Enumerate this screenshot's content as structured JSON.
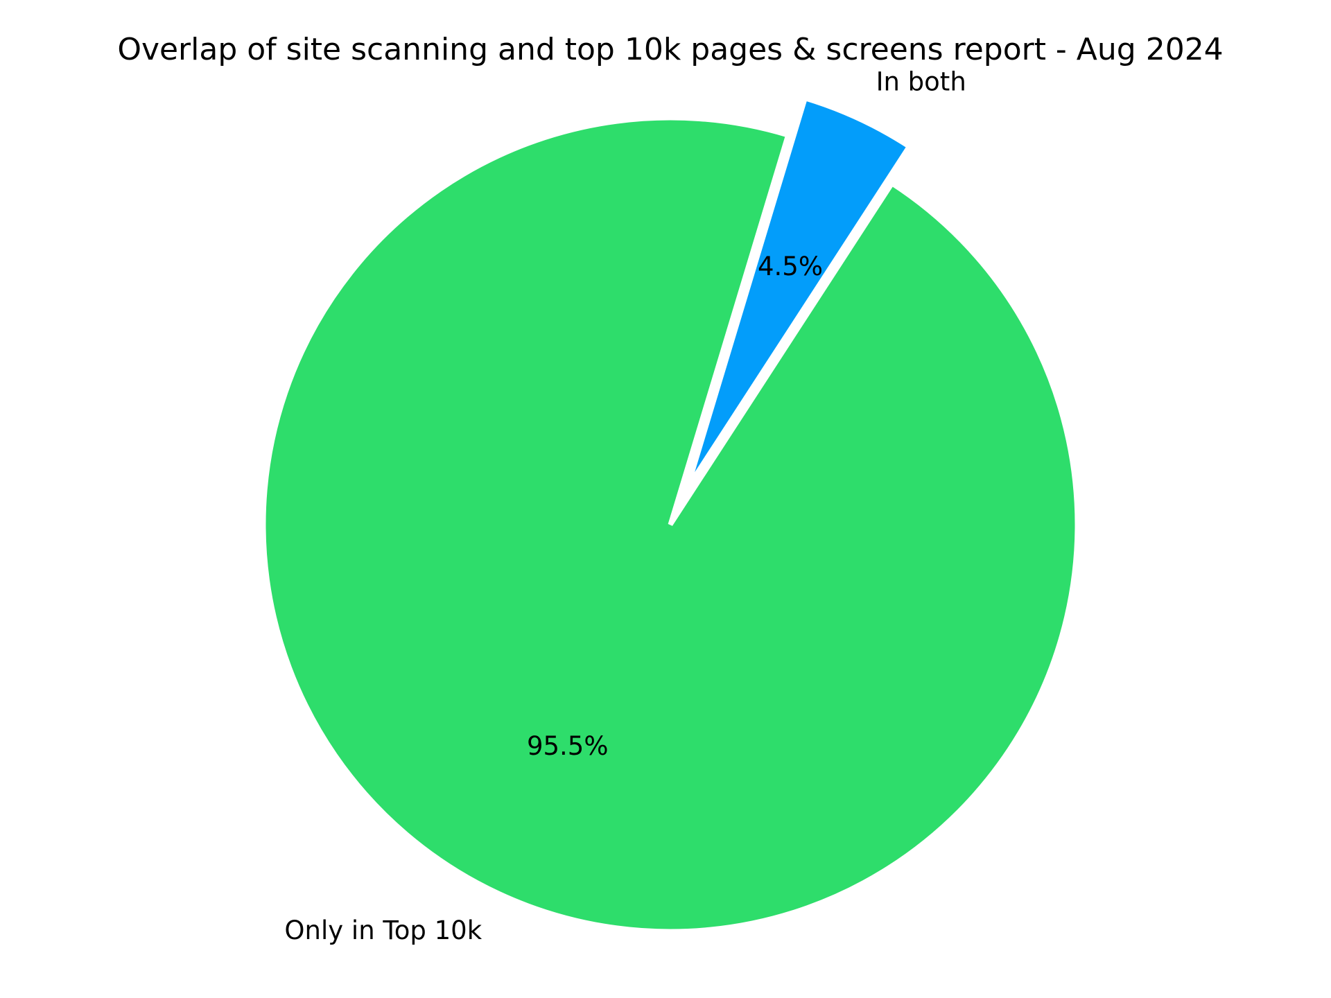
{
  "chart_data": {
    "type": "pie",
    "title": "Overlap of site scanning and top 10k pages & screens report - Aug 2024",
    "slices": [
      {
        "label": "In both",
        "value": 4.5,
        "pct_label": "4.5%",
        "color": "#039dfa",
        "exploded": true
      },
      {
        "label": "Only in Top 10k",
        "value": 95.5,
        "pct_label": "95.5%",
        "color": "#2edd6b",
        "exploded": false
      }
    ],
    "start_angle_deg": 57,
    "direction": "counterclockwise",
    "edge_color": "#ffffff",
    "legend": "none"
  }
}
